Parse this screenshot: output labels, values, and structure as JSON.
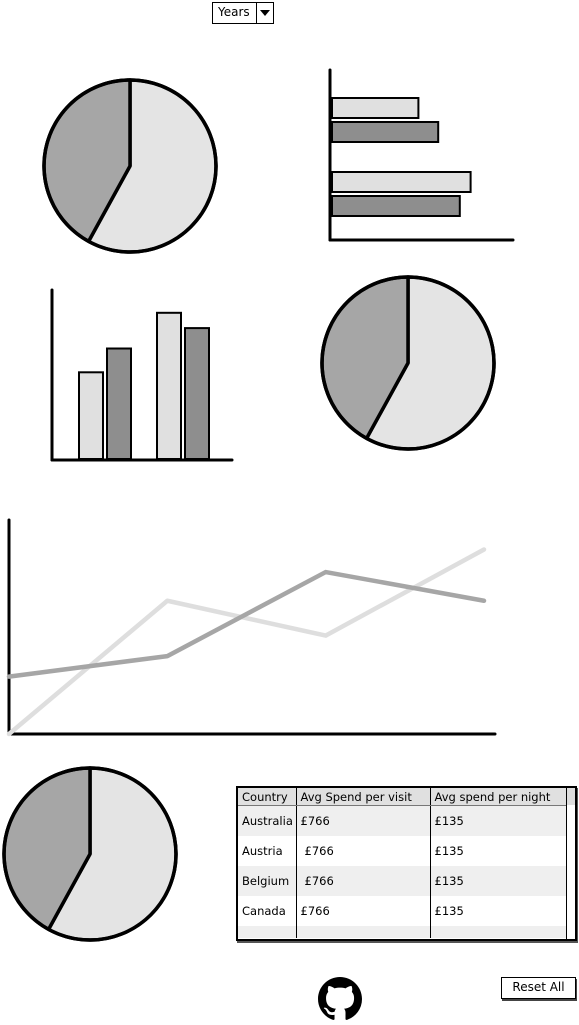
{
  "filter": {
    "selected": "Years"
  },
  "charts": {
    "pie_top": {
      "type": "pie",
      "values": [
        58,
        42
      ],
      "colors": [
        "#e4e4e4",
        "#a6a6a6"
      ]
    },
    "bar_horizontal": {
      "type": "bar",
      "orientation": "horizontal",
      "groups": [
        {
          "values": [
            48,
            59
          ]
        },
        {
          "values": [
            77,
            71
          ]
        }
      ],
      "colors": [
        "#e0e0e0",
        "#8e8e8e"
      ],
      "xlim": [
        0,
        100
      ]
    },
    "bar_vertical": {
      "type": "bar",
      "orientation": "vertical",
      "groups": [
        {
          "values": [
            51,
            65
          ]
        },
        {
          "values": [
            86,
            77
          ]
        }
      ],
      "colors": [
        "#e0e0e0",
        "#8e8e8e"
      ],
      "ylim": [
        0,
        100
      ]
    },
    "pie_middle": {
      "type": "pie",
      "values": [
        58,
        42
      ],
      "colors": [
        "#e4e4e4",
        "#a6a6a6"
      ]
    },
    "line": {
      "type": "line",
      "x": [
        0,
        1,
        2,
        3
      ],
      "series": [
        {
          "values": [
            0,
            65,
            48,
            90
          ],
          "color": "#dedede"
        },
        {
          "values": [
            28,
            38,
            79,
            65
          ],
          "color": "#a6a6a6"
        }
      ],
      "ylim": [
        0,
        100
      ]
    },
    "pie_bottom": {
      "type": "pie",
      "values": [
        58,
        42
      ],
      "colors": [
        "#e4e4e4",
        "#a6a6a6"
      ]
    }
  },
  "table": {
    "headers": [
      "Country",
      "Avg Spend per visit",
      "Avg spend per night"
    ],
    "rows": [
      [
        "Australia",
        "£766",
        "£135"
      ],
      [
        "Austria",
        "£766",
        "£135"
      ],
      [
        "Belgium",
        "£766",
        "£135"
      ],
      [
        "Canada",
        "£766",
        "£135"
      ],
      [
        "",
        "",
        ""
      ]
    ]
  },
  "footer": {
    "reset_label": "Reset All",
    "github_icon": "github-icon"
  }
}
